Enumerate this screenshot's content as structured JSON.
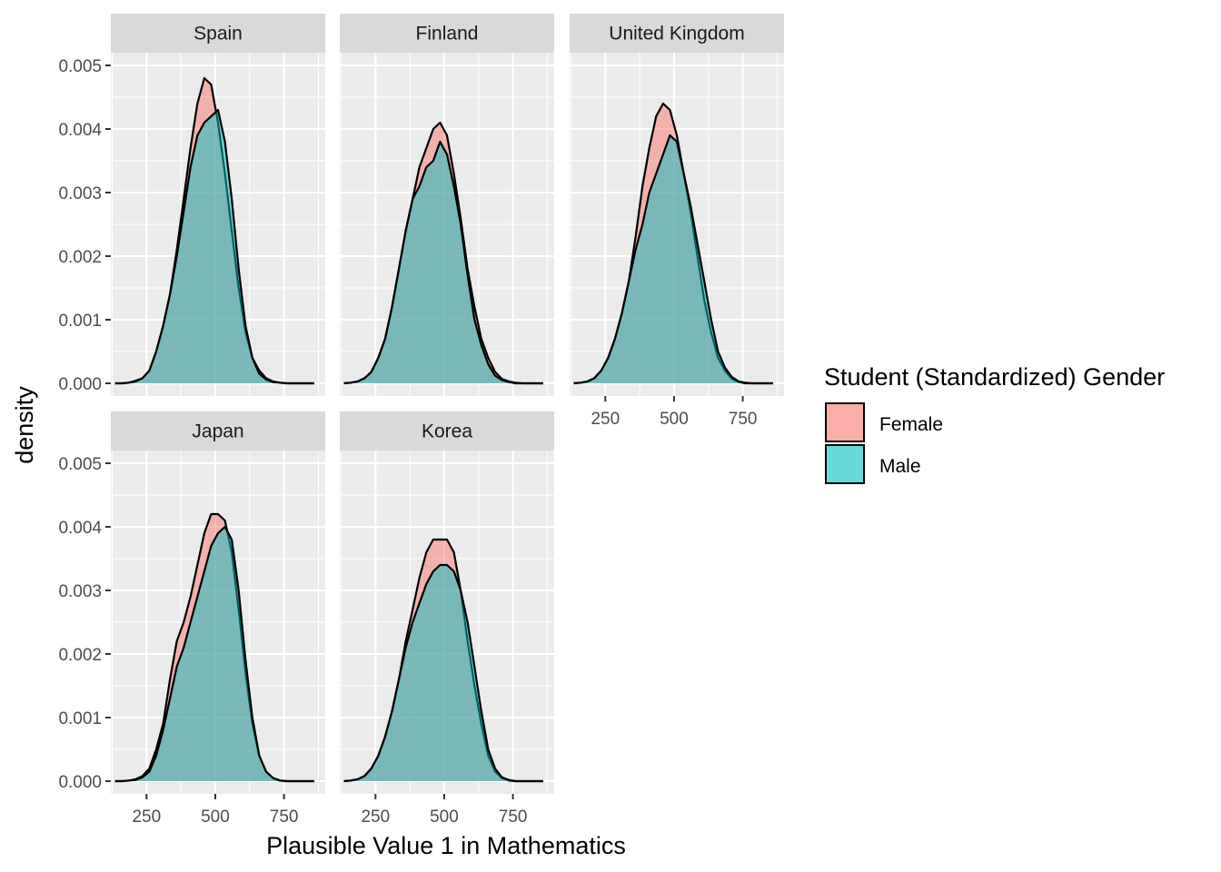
{
  "chart_data": {
    "type": "area",
    "xlabel": "Plausible Value 1 in Mathematics",
    "ylabel": "density",
    "xlim": [
      120,
      900
    ],
    "ylim": [
      -0.0002,
      0.0052
    ],
    "x_ticks": [
      250,
      500,
      750
    ],
    "x_tick_labels": [
      "250",
      "500",
      "750"
    ],
    "y_ticks": [
      0,
      0.001,
      0.002,
      0.003,
      0.004,
      0.005
    ],
    "y_tick_labels": [
      "0.000",
      "0.001",
      "0.002",
      "0.003",
      "0.004",
      "0.005"
    ],
    "grid": true,
    "legend": {
      "title": "Student (Standardized) Gender",
      "placement": "right",
      "entries": [
        {
          "name": "Female",
          "color": "#F8766D"
        },
        {
          "name": "Male",
          "color": "#00BFC4"
        }
      ]
    },
    "colors": {
      "Female": "#F8766D",
      "Male": "#00BFC4",
      "panel_bg": "#EBEBEB",
      "strip_bg": "#D9D9D9"
    },
    "x": [
      135,
      160,
      185,
      210,
      235,
      260,
      285,
      310,
      335,
      360,
      385,
      410,
      435,
      460,
      485,
      510,
      535,
      560,
      585,
      610,
      635,
      660,
      685,
      710,
      735,
      760,
      785,
      810,
      835,
      860
    ],
    "panels": [
      {
        "name": "Spain",
        "series": [
          {
            "name": "Female",
            "values": [
              0,
              0,
              1e-05,
              4e-05,
              8e-05,
              0.0002,
              0.0005,
              0.0009,
              0.0014,
              0.0021,
              0.0029,
              0.0037,
              0.0044,
              0.0048,
              0.0047,
              0.0041,
              0.0033,
              0.0024,
              0.0015,
              0.0008,
              0.0004,
              0.0002,
              8e-05,
              3e-05,
              1e-05,
              0,
              0,
              0,
              0,
              0
            ]
          },
          {
            "name": "Male",
            "values": [
              0,
              0,
              1e-05,
              3e-05,
              8e-05,
              0.0002,
              0.0005,
              0.0009,
              0.0014,
              0.002,
              0.0027,
              0.0034,
              0.0039,
              0.0041,
              0.0042,
              0.0043,
              0.0038,
              0.0029,
              0.0018,
              0.0009,
              0.0004,
              0.00015,
              6e-05,
              2e-05,
              1e-05,
              0,
              0,
              0,
              0,
              0
            ]
          }
        ]
      },
      {
        "name": "Finland",
        "series": [
          {
            "name": "Female",
            "values": [
              0,
              1e-05,
              3e-05,
              8e-05,
              0.00018,
              0.0004,
              0.0007,
              0.0012,
              0.0018,
              0.0024,
              0.0029,
              0.0034,
              0.0037,
              0.004,
              0.0041,
              0.0039,
              0.0033,
              0.0026,
              0.0018,
              0.0012,
              0.0007,
              0.0004,
              0.00018,
              7e-05,
              3e-05,
              1e-05,
              0,
              0,
              0,
              0
            ]
          },
          {
            "name": "Male",
            "values": [
              0,
              1e-05,
              3e-05,
              8e-05,
              0.00018,
              0.0004,
              0.0007,
              0.0012,
              0.0018,
              0.0024,
              0.0029,
              0.0031,
              0.0034,
              0.0035,
              0.0038,
              0.0036,
              0.0031,
              0.0025,
              0.0017,
              0.001,
              0.0006,
              0.0003,
              0.00012,
              5e-05,
              2e-05,
              0,
              0,
              0,
              0,
              0
            ]
          }
        ]
      },
      {
        "name": "United Kingdom",
        "series": [
          {
            "name": "Female",
            "values": [
              0,
              1e-05,
              3e-05,
              8e-05,
              0.0002,
              0.0004,
              0.0007,
              0.0011,
              0.0016,
              0.0023,
              0.0031,
              0.0037,
              0.0042,
              0.0044,
              0.0043,
              0.0039,
              0.0033,
              0.0027,
              0.002,
              0.0013,
              0.0008,
              0.0004,
              0.0002,
              7e-05,
              2e-05,
              0,
              0,
              0,
              0,
              0
            ]
          },
          {
            "name": "Male",
            "values": [
              0,
              1e-05,
              3e-05,
              8e-05,
              0.0002,
              0.0004,
              0.0007,
              0.0011,
              0.0016,
              0.0021,
              0.0025,
              0.003,
              0.0033,
              0.0036,
              0.0039,
              0.0038,
              0.0033,
              0.0028,
              0.0022,
              0.0016,
              0.001,
              0.0005,
              0.00025,
              0.0001,
              3e-05,
              1e-05,
              0,
              0,
              0,
              0
            ]
          }
        ]
      },
      {
        "name": "Japan",
        "series": [
          {
            "name": "Female",
            "values": [
              0,
              0,
              1e-05,
              3e-05,
              8e-05,
              0.0002,
              0.0005,
              0.0009,
              0.0016,
              0.0022,
              0.0025,
              0.0029,
              0.0034,
              0.0039,
              0.0042,
              0.0042,
              0.0041,
              0.0036,
              0.0027,
              0.0017,
              0.0009,
              0.0004,
              0.00015,
              5e-05,
              1e-05,
              0,
              0,
              0,
              0,
              0
            ]
          },
          {
            "name": "Male",
            "values": [
              0,
              0,
              1e-05,
              2e-05,
              6e-05,
              0.00015,
              0.0004,
              0.0008,
              0.0013,
              0.0018,
              0.0021,
              0.0025,
              0.0029,
              0.0033,
              0.0037,
              0.0039,
              0.004,
              0.0038,
              0.003,
              0.0019,
              0.001,
              0.0004,
              0.00015,
              5e-05,
              1e-05,
              0,
              0,
              0,
              0,
              0
            ]
          }
        ]
      },
      {
        "name": "Korea",
        "series": [
          {
            "name": "Female",
            "values": [
              0,
              1e-05,
              3e-05,
              8e-05,
              0.0002,
              0.0004,
              0.0007,
              0.0011,
              0.0016,
              0.0022,
              0.0027,
              0.0032,
              0.0036,
              0.0038,
              0.0038,
              0.0038,
              0.0036,
              0.003,
              0.0022,
              0.0015,
              0.0009,
              0.0004,
              0.00015,
              5e-05,
              1e-05,
              0,
              0,
              0,
              0,
              0
            ]
          },
          {
            "name": "Male",
            "values": [
              0,
              1e-05,
              3e-05,
              8e-05,
              0.0002,
              0.0004,
              0.0007,
              0.0011,
              0.0016,
              0.0021,
              0.0025,
              0.0028,
              0.0031,
              0.0033,
              0.0034,
              0.0034,
              0.0033,
              0.003,
              0.0025,
              0.0018,
              0.0011,
              0.0005,
              0.0002,
              6e-05,
              2e-05,
              0,
              0,
              0,
              0,
              0
            ]
          }
        ]
      }
    ]
  }
}
